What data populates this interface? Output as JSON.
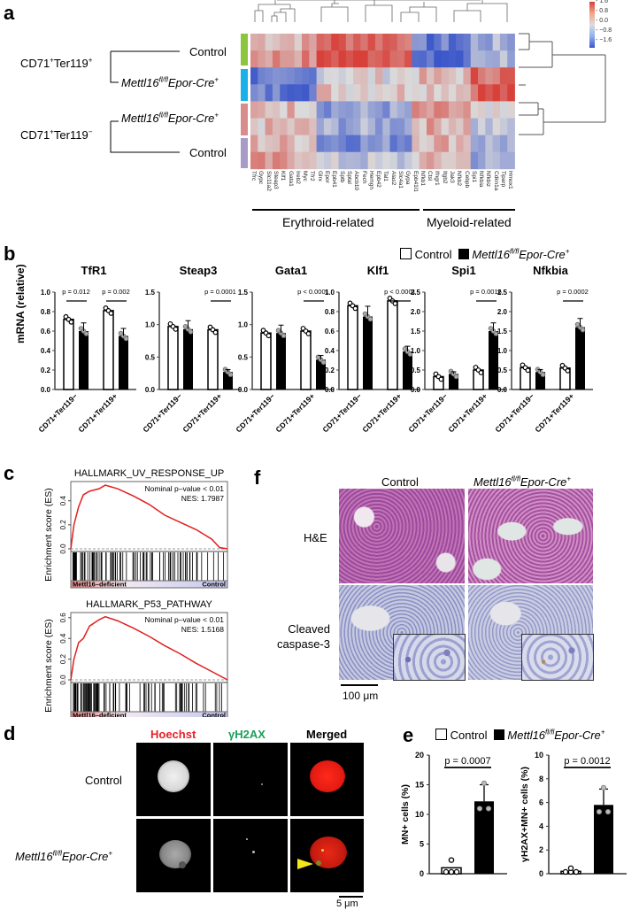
{
  "panels": {
    "a": {
      "label": "a",
      "groups": [
        {
          "name": "CD71+Ter119+",
          "rows": [
            "Control",
            "Mettl16fl/fl Epor-Cre+"
          ]
        },
        {
          "name": "CD71+Ter119−",
          "rows": [
            "Mettl16fl/fl Epor-Cre+",
            "Control"
          ]
        }
      ],
      "group_labels": {
        "g1_main": "CD71",
        "g1_mid": "Ter119",
        "g1_sup1": "+",
        "g1_sup2": "+",
        "g2_main": "CD71",
        "g2_mid": "Ter119",
        "g2_sup1": "+",
        "g2_sup2": "−"
      },
      "row_labels": {
        "control": "Control",
        "ko_main": "Mettl16",
        "ko_sup": "fl/fl",
        "ko_rest": "Epor-Cre",
        "ko_plus": "+"
      },
      "row_colors": [
        "#8cc63f",
        "#1ab0e8",
        "#d98c8c",
        "#a99bc7"
      ],
      "genes": [
        "Tfrc",
        "Gypc",
        "Slc11a2",
        "Steap3",
        "Klf1",
        "Gata1",
        "Ireb2",
        "Myc",
        "Tfr2",
        "Glrx",
        "Epor",
        "Epb41",
        "Sptb",
        "Sptal",
        "Abcb10",
        "Fech",
        "Hemgn",
        "Epb42",
        "Tal1",
        "Alas2",
        "Slc4a1",
        "Gypa",
        "Epb41l1",
        "Nfkb1",
        "Ctsl",
        "Ifngr1",
        "Itgb2",
        "Jak3",
        "Nfkb2",
        "Cebpb",
        "Spi1",
        "Nfkbia",
        "Nfkbiz",
        "Cdkn1a",
        "Tiparp",
        "Hmox1"
      ],
      "category_labels": {
        "erythroid": "Erythroid-related",
        "myeloid": "Myeloid-related"
      },
      "colorbar": {
        "ticks": [
          "1.6",
          "0.8",
          "0.0",
          "−0.8",
          "−1.6"
        ],
        "high": "#d7413a",
        "mid": "#dcdcdc",
        "low": "#3a56c9"
      }
    },
    "b": {
      "label": "b",
      "legend": {
        "control": "Control",
        "ko_main": "Mettl16",
        "ko_sup": "fl/fl",
        "ko_rest": "Epor-Cre",
        "ko_plus": "+"
      },
      "ylabel": "mRNA (relative)",
      "xcat": [
        "CD71+Ter119−",
        "CD71+Ter119+"
      ]
    },
    "c": {
      "label": "c",
      "ylabel": "Enrichment score (ES)",
      "left_label": "Mettl16–deficient",
      "right_label": "Control"
    },
    "d": {
      "label": "d",
      "columns": [
        "Hoechst",
        "γH2AX",
        "Merged"
      ],
      "column_colors": [
        "#e8202a",
        "#1a9e5a",
        "#000000"
      ],
      "rows": {
        "control": "Control",
        "ko_main": "Mettl16",
        "ko_sup": "fl/fl",
        "ko_rest": "Epor-Cre",
        "ko_plus": "+"
      },
      "scalebar": "5 μm"
    },
    "e": {
      "label": "e",
      "legend": {
        "control": "Control",
        "ko_main": "Mettl16",
        "ko_sup": "fl/fl",
        "ko_rest": "Epor-Cre",
        "ko_plus": "+"
      }
    },
    "f": {
      "label": "f",
      "columns": {
        "control": "Control",
        "ko_main": "Mettl16",
        "ko_sup": "fl/fl",
        "ko_rest": "Epor-Cre",
        "ko_plus": "+"
      },
      "rows": [
        "H&E",
        "Cleaved",
        "caspase-3"
      ],
      "scalebar": "100 μm"
    }
  },
  "chart_data": [
    {
      "panel": "b",
      "type": "bar",
      "title": "TfR1",
      "categories": [
        "CD71+Ter119−",
        "CD71+Ter119+"
      ],
      "series": [
        {
          "name": "Control",
          "values": [
            0.72,
            0.81
          ]
        },
        {
          "name": "Mettl16fl/fl Epor-Cre+",
          "values": [
            0.6,
            0.55
          ]
        }
      ],
      "ylabel": "mRNA (relative)",
      "ylim": [
        0,
        1.0
      ],
      "yticks": [
        "0.0",
        "0.2",
        "0.4",
        "0.6",
        "0.8",
        "1.0"
      ],
      "pvalues": [
        "p = 0.012",
        "p = 0.002"
      ]
    },
    {
      "panel": "b",
      "type": "bar",
      "title": "Steap3",
      "categories": [
        "CD71+Ter119−",
        "CD71+Ter119+"
      ],
      "series": [
        {
          "name": "Control",
          "values": [
            0.97,
            0.92
          ]
        },
        {
          "name": "Mettl16fl/fl Epor-Cre+",
          "values": [
            0.93,
            0.27
          ]
        }
      ],
      "ylim": [
        0,
        1.5
      ],
      "yticks": [
        "0.0",
        "0.5",
        "1.0",
        "1.5"
      ],
      "pvalues": [
        "",
        "p = 0.0001"
      ]
    },
    {
      "panel": "b",
      "type": "bar",
      "title": "Gata1",
      "categories": [
        "CD71+Ter119−",
        "CD71+Ter119+"
      ],
      "series": [
        {
          "name": "Control",
          "values": [
            0.87,
            0.9
          ]
        },
        {
          "name": "Mettl16fl/fl Epor-Cre+",
          "values": [
            0.87,
            0.46
          ]
        }
      ],
      "ylim": [
        0,
        1.5
      ],
      "yticks": [
        "0.0",
        "0.5",
        "1.0",
        "1.5"
      ],
      "pvalues": [
        "",
        "p < 0.0001"
      ]
    },
    {
      "panel": "b",
      "type": "bar",
      "title": "Klf1",
      "categories": [
        "CD71+Ter119−",
        "CD71+Ter119+"
      ],
      "series": [
        {
          "name": "Control",
          "values": [
            0.86,
            0.91
          ]
        },
        {
          "name": "Mettl16fl/fl Epor-Cre+",
          "values": [
            0.75,
            0.39
          ]
        }
      ],
      "ylim": [
        0,
        1.0
      ],
      "yticks": [
        "0.0",
        "0.2",
        "0.4",
        "0.6",
        "0.8",
        "1.0"
      ],
      "pvalues": [
        "",
        "p < 0.0001"
      ]
    },
    {
      "panel": "b",
      "type": "bar",
      "title": "Spi1",
      "categories": [
        "CD71+Ter119−",
        "CD71+Ter119+"
      ],
      "series": [
        {
          "name": "Control",
          "values": [
            0.33,
            0.5
          ]
        },
        {
          "name": "Mettl16fl/fl Epor-Cre+",
          "values": [
            0.4,
            1.5
          ]
        }
      ],
      "ylim": [
        0,
        2.5
      ],
      "yticks": [
        "0.0",
        "0.5",
        "1.0",
        "1.5",
        "2.0",
        "2.5"
      ],
      "pvalues": [
        "",
        "p = 0.0016"
      ]
    },
    {
      "panel": "b",
      "type": "bar",
      "title": "Nfkbia",
      "categories": [
        "CD71+Ter119−",
        "CD71+Ter119+"
      ],
      "series": [
        {
          "name": "Control",
          "values": [
            0.56,
            0.55
          ]
        },
        {
          "name": "Mettl16fl/fl Epor-Cre+",
          "values": [
            0.45,
            1.6
          ]
        }
      ],
      "ylim": [
        0,
        2.5
      ],
      "yticks": [
        "0.0",
        "0.5",
        "1.0",
        "1.5",
        "2.0",
        "2.5"
      ],
      "pvalues": [
        "",
        "p = 0.0002"
      ]
    },
    {
      "panel": "c",
      "type": "line",
      "title": "HALLMARK_UV_RESPONSE_UP",
      "ylabel": "Enrichment score (ES)",
      "yticks": [
        "0.0",
        "0.2",
        "0.4"
      ],
      "annotation": [
        "Nominal p–value < 0.01",
        "NES: 1.7987"
      ],
      "peak_es": 0.53,
      "x": [
        0,
        0.02,
        0.05,
        0.08,
        0.12,
        0.18,
        0.22,
        0.3,
        0.4,
        0.5,
        0.6,
        0.7,
        0.8,
        0.9,
        0.95,
        1.0
      ],
      "values": [
        0,
        0.2,
        0.35,
        0.45,
        0.48,
        0.5,
        0.53,
        0.5,
        0.44,
        0.37,
        0.28,
        0.22,
        0.16,
        0.08,
        0.01,
        0.0
      ]
    },
    {
      "panel": "c",
      "type": "line",
      "title": "HALLMARK_P53_PATHWAY",
      "ylabel": "Enrichment score (ES)",
      "yticks": [
        "0.0",
        "0.2",
        "0.4",
        "0.6"
      ],
      "annotation": [
        "Nominal p–value < 0.01",
        "NES: 1.5168"
      ],
      "peak_es": 0.61,
      "x": [
        0,
        0.02,
        0.05,
        0.08,
        0.12,
        0.18,
        0.22,
        0.3,
        0.4,
        0.5,
        0.6,
        0.7,
        0.8,
        0.9,
        1.0
      ],
      "values": [
        0,
        0.2,
        0.36,
        0.4,
        0.52,
        0.58,
        0.61,
        0.57,
        0.5,
        0.42,
        0.33,
        0.25,
        0.16,
        0.08,
        0.0
      ]
    },
    {
      "panel": "e",
      "type": "bar",
      "title": "",
      "categories": [
        "Control",
        "Mettl16fl/fl Epor-Cre+"
      ],
      "values": [
        1.0,
        12.2
      ],
      "ylabel": "MN+ cells (%)",
      "ylim": [
        0,
        20
      ],
      "yticks": [
        "0",
        "5",
        "10",
        "15",
        "20"
      ],
      "pvalue": "p = 0.0007"
    },
    {
      "panel": "e",
      "type": "bar",
      "title": "",
      "categories": [
        "Control",
        "Mettl16fl/fl Epor-Cre+"
      ],
      "values": [
        0.2,
        5.8
      ],
      "ylabel": "γH2AX+MN+ cells (%)",
      "ylim": [
        0,
        10
      ],
      "yticks": [
        "0",
        "2",
        "4",
        "6",
        "8",
        "10"
      ],
      "pvalue": "p = 0.0012"
    }
  ]
}
